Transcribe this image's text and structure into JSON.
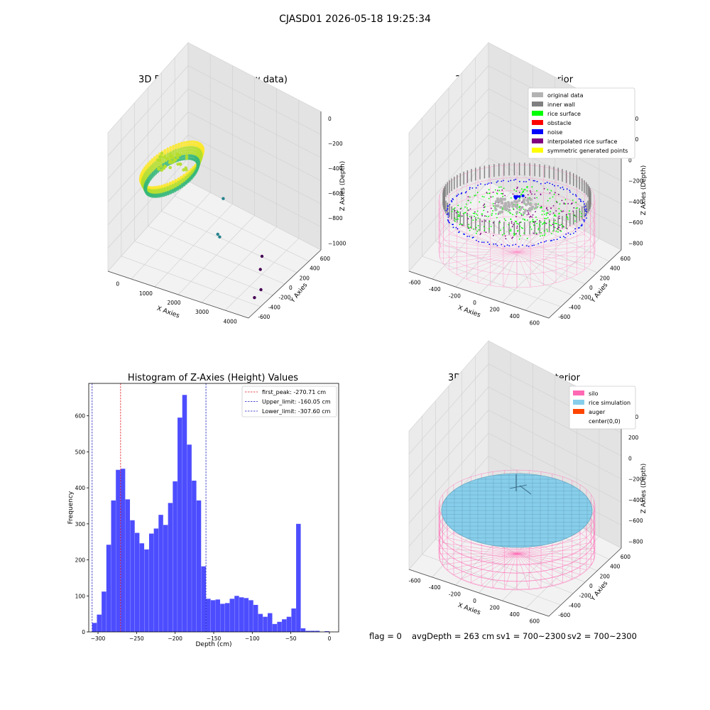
{
  "figure": {
    "suptitle": "CJASD01 2026-05-18 19:25:34",
    "status": {
      "flag": "flag = 0",
      "avg_depth": "avgDepth = 263 cm",
      "sv1": "sv1 = 700~2300",
      "sv2": "sv2 = 700~2300"
    }
  },
  "chart_data": [
    {
      "type": "scatter",
      "subtype": "3d",
      "title": "3D Plot of Silo Interior(row data)",
      "xlabel": "X Axies",
      "ylabel": "Y Axies",
      "zlabel": "Z Axies (Depth)",
      "x_ticks": [
        "0",
        "1000",
        "2000",
        "3000",
        "4000"
      ],
      "y_ticks": [
        "-600",
        "-400",
        "-200",
        "0",
        "200",
        "400",
        "600"
      ],
      "z_ticks": [
        "0",
        "−200",
        "−400",
        "−600",
        "−800",
        "−1000"
      ],
      "colormap": [
        "#fde725",
        "#b5de2b",
        "#35b779",
        "#26828e",
        "#31688e",
        "#440154"
      ],
      "outliers": [
        {
          "x": 2150,
          "y": 50,
          "z": -620
        },
        {
          "x": 2150,
          "y": -50,
          "z": -880
        },
        {
          "x": 2180,
          "y": -30,
          "z": -910
        },
        {
          "x": 3650,
          "y": 10,
          "z": -950
        },
        {
          "x": 3800,
          "y": -100,
          "z": -1000
        },
        {
          "x": 4200,
          "y": -300,
          "z": -1050
        },
        {
          "x": 4250,
          "y": -450,
          "z": -1050
        }
      ]
    },
    {
      "type": "scatter",
      "subtype": "3d",
      "title": "3D classify of Silo Interior",
      "xlabel": "X Axies",
      "ylabel": "Y Axies",
      "zlabel": "Z Axies (Depth)",
      "x_ticks": [
        "-600",
        "-400",
        "-200",
        "0",
        "200",
        "400",
        "600"
      ],
      "y_ticks": [
        "-600",
        "-400",
        "-200",
        "0",
        "200",
        "400",
        "600"
      ],
      "z_ticks": [
        "400",
        "200",
        "0",
        "−200",
        "−400",
        "−600",
        "−800"
      ],
      "legend_position": "top-right",
      "legend": [
        {
          "label": "original data",
          "color": "#b3b3b3"
        },
        {
          "label": "inner wall",
          "color": "#808080"
        },
        {
          "label": "rice surface",
          "color": "#00ff00"
        },
        {
          "label": "obstacle",
          "color": "#ff0000"
        },
        {
          "label": "noise",
          "color": "#0000ff"
        },
        {
          "label": "interpolated rice surface",
          "color": "#800080"
        },
        {
          "label": "symmetric generated points",
          "color": "#ffff00"
        }
      ]
    },
    {
      "type": "bar",
      "subtype": "histogram",
      "title": "Histogram of Z-Axies (Height) Values",
      "xlabel": "Depth (cm)",
      "ylabel": "Frequency",
      "xlim": [
        -312,
        12
      ],
      "ylim": [
        0,
        690
      ],
      "x_ticks": [
        -300,
        -250,
        -200,
        -150,
        -100,
        -50,
        0
      ],
      "y_ticks": [
        0,
        100,
        200,
        300,
        400,
        500,
        600
      ],
      "bar_color": "#4d4dff",
      "bin_width": 6.15,
      "bins_start": -307.6,
      "values": [
        25,
        48,
        112,
        242,
        365,
        450,
        453,
        368,
        310,
        275,
        246,
        229,
        273,
        287,
        325,
        297,
        358,
        418,
        595,
        658,
        520,
        420,
        365,
        182,
        92,
        88,
        90,
        78,
        80,
        92,
        100,
        96,
        94,
        88,
        75,
        50,
        42,
        52,
        22,
        28,
        35,
        42,
        65,
        300,
        10,
        3,
        3,
        3,
        0,
        2
      ],
      "legend_position": "top-right",
      "vlines": [
        {
          "label": "first_peak: -270.71 cm",
          "x": -270.71,
          "color": "#e41a1c"
        },
        {
          "label": "Upper_limit: -160.05 cm",
          "x": -160.05,
          "color": "#1f1fbf"
        },
        {
          "label": "Lower_limit: -307.60 cm",
          "x": -307.6,
          "color": "#1f1fbf"
        }
      ]
    },
    {
      "type": "scatter",
      "subtype": "3d",
      "title": "3D simulation of Silo Interior",
      "xlabel": "X Axies",
      "ylabel": "Y Axies",
      "zlabel": "Z Axies (Depth)",
      "x_ticks": [
        "-600",
        "-400",
        "-200",
        "0",
        "200",
        "400",
        "600"
      ],
      "y_ticks": [
        "-600",
        "-400",
        "-200",
        "0",
        "200",
        "400",
        "600"
      ],
      "z_ticks": [
        "400",
        "200",
        "0",
        "−200",
        "−400",
        "−600",
        "−800"
      ],
      "legend_position": "top-right",
      "legend": [
        {
          "label": "silo",
          "color": "#ff69b4"
        },
        {
          "label": "rice simulation",
          "color": "#87ceeb"
        },
        {
          "label": "auger",
          "color": "#ff4500"
        },
        {
          "label": "center(0,0)",
          "color": "#ffffff"
        }
      ]
    }
  ]
}
